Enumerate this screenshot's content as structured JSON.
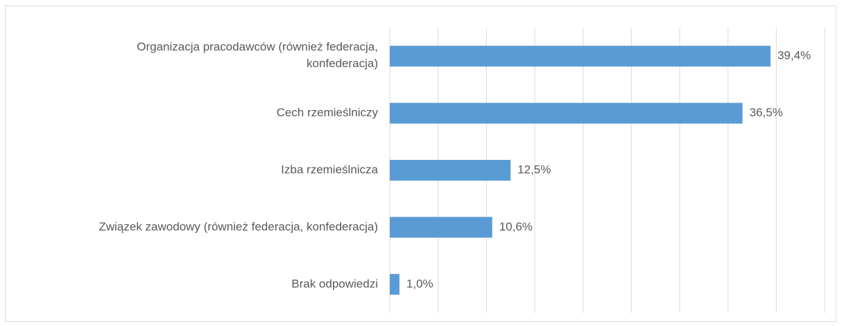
{
  "chart_data": {
    "type": "hbar",
    "categories": [
      "Organizacja pracodawców (również federacja, konfederacja)",
      "Cech rzemieślniczy",
      "Izba rzemieślnicza",
      "Związek zawodowy (również federacja, konfederacja)",
      "Brak odpowiedzi"
    ],
    "values": [
      39.4,
      36.5,
      12.5,
      10.6,
      1.0
    ],
    "value_labels": [
      "39,4%",
      "36,5%",
      "12,5%",
      "10,6%",
      "1,0%"
    ],
    "color": "#5b9bd5",
    "xlim": [
      0,
      45
    ],
    "xticks": [
      0,
      5,
      10,
      15,
      20,
      25,
      30,
      35,
      40,
      45
    ],
    "grid": true
  }
}
